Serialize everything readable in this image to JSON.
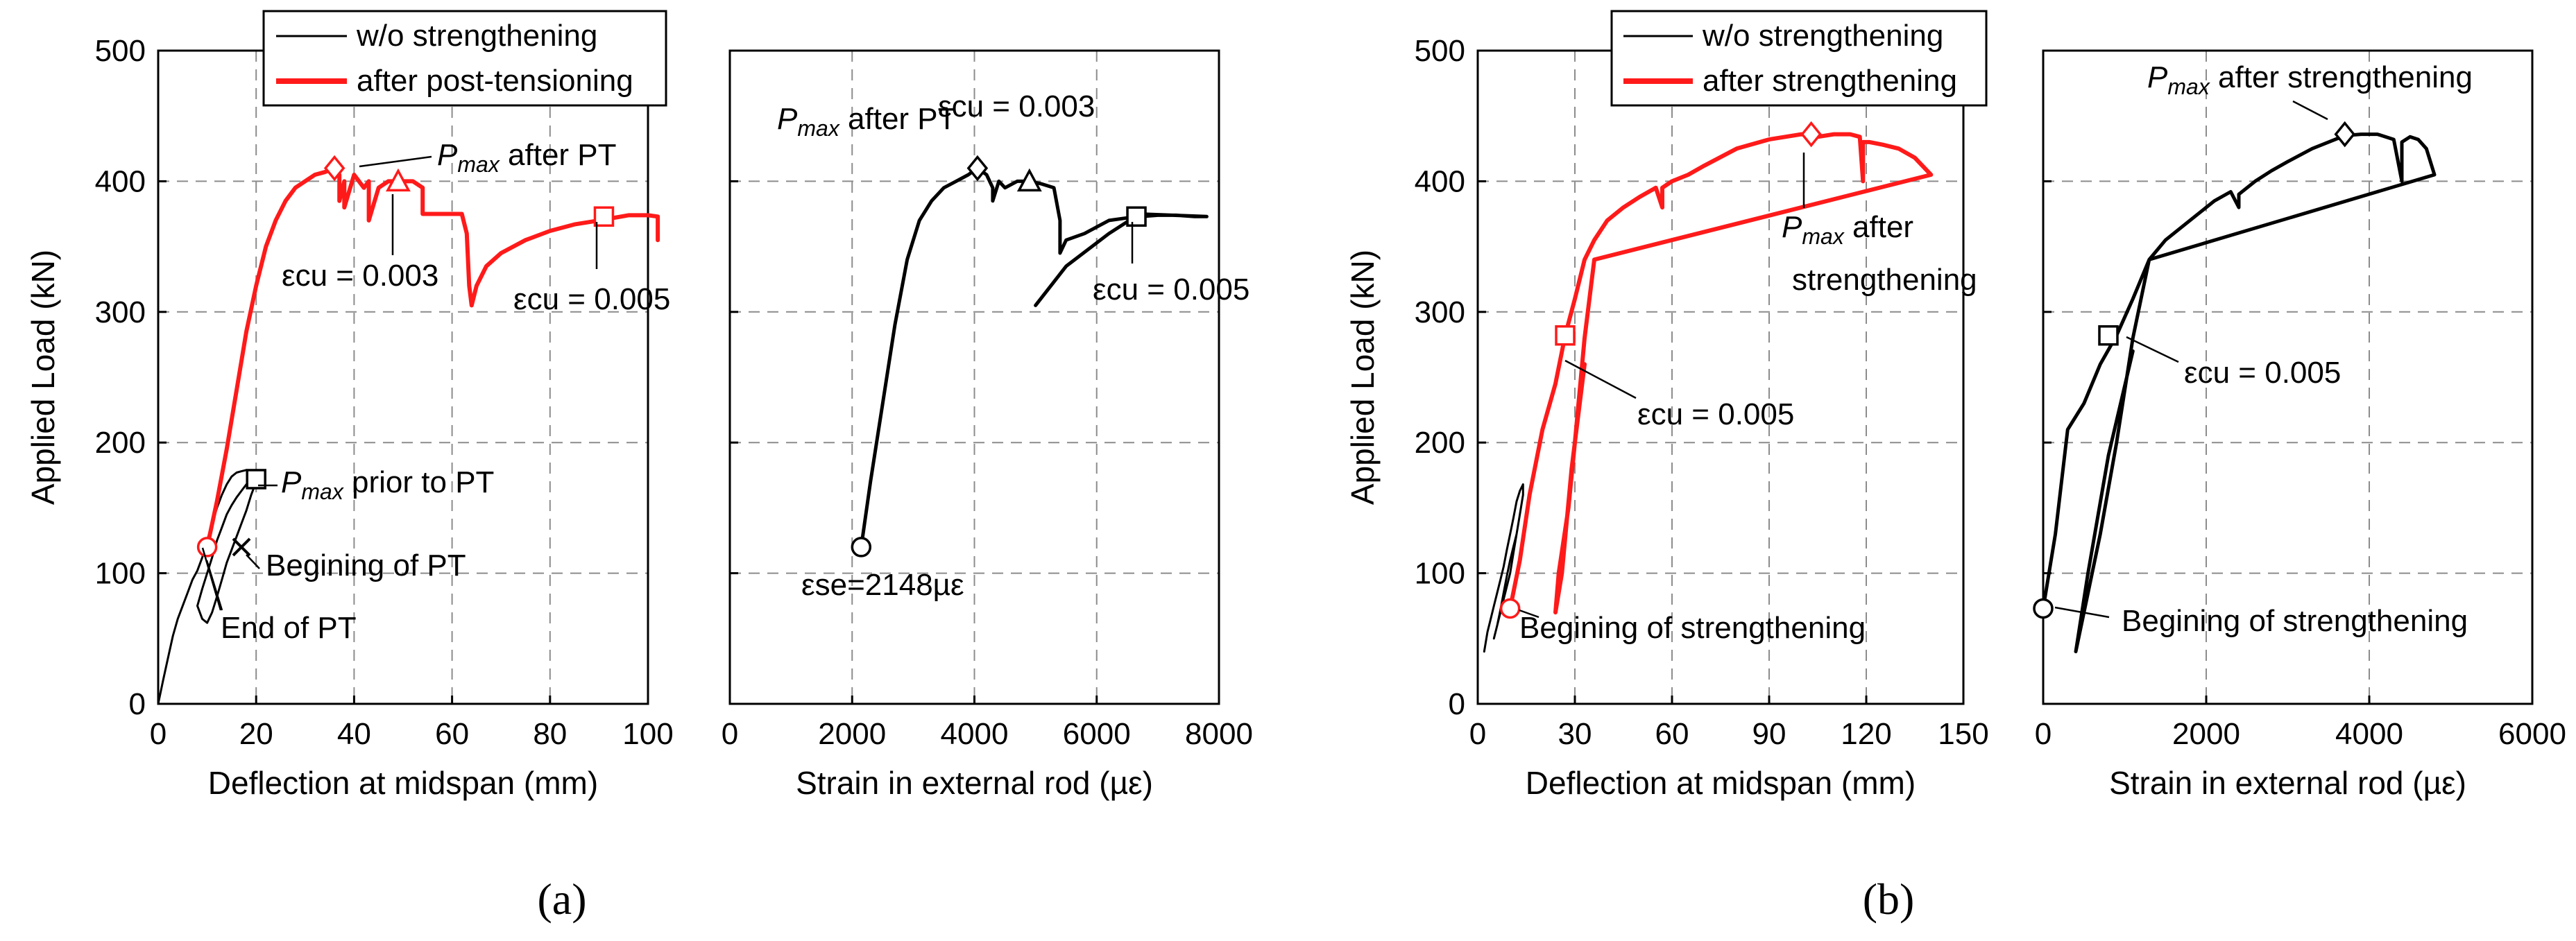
{
  "panel_labels": {
    "a": "(a)",
    "b": "(b)"
  },
  "legend_a": {
    "black": "w/o strengthening",
    "red": "after post-tensioning"
  },
  "legend_b": {
    "black": "w/o strengthening",
    "red": "after strengthening"
  },
  "axis_titles": {
    "load": "Applied Load (kN)",
    "deflection": "Deflection at midspan (mm)",
    "strain": "Strain in external rod (µε)"
  },
  "annotations": {
    "a1_pmax_pt": "P_max after PT",
    "a1_ecu_003": "εcu = 0.003",
    "a1_ecu_005": "εcu = 0.005",
    "a1_pmax_prior": "P_max prior to PT",
    "a1_beg_pt": "Begining of PT",
    "a1_end_pt": "End of PT",
    "a2_pmax_pt": "P_max after PT",
    "a2_ecu_003": "εcu = 0.003",
    "a2_ecu_005": "εcu = 0.005",
    "a2_ese": "εse=2148µε",
    "b1_pmax_line1": "P_max after",
    "b1_pmax_line2": "strengthening",
    "b1_ecu_005": "εcu = 0.005",
    "b1_beg": "Begining of strengthening",
    "b2_pmax": "P_max after strengthening",
    "b2_ecu_005": "εcu = 0.005",
    "b2_beg": "Begining of strengthening"
  },
  "colors": {
    "black": "#000000",
    "red": "#ff1a1a",
    "grid": "#8c8c8c"
  },
  "chart_data": [
    {
      "id": "a1",
      "type": "line",
      "xlabel": "Deflection at midspan (mm)",
      "ylabel": "Applied Load (kN)",
      "xlim": [
        0,
        100
      ],
      "ylim": [
        0,
        500
      ],
      "xticks": [
        0,
        20,
        40,
        60,
        80,
        100
      ],
      "yticks": [
        0,
        100,
        200,
        300,
        400,
        500
      ],
      "grid": true,
      "legend": "top-center",
      "series": [
        {
          "name": "w/o strengthening",
          "color": "#000000",
          "width": 3,
          "x": [
            0,
            1,
            2,
            3,
            4,
            5,
            6,
            7,
            8,
            9,
            10,
            11,
            12,
            13,
            14,
            15,
            16,
            17,
            18,
            19,
            20,
            20,
            19,
            18,
            17,
            16,
            15,
            14,
            13,
            12,
            11,
            10,
            9,
            8,
            9,
            10,
            11,
            12,
            13,
            14,
            15,
            16,
            17,
            18,
            20
          ],
          "y": [
            0,
            18,
            35,
            52,
            65,
            75,
            85,
            95,
            102,
            112,
            125,
            138,
            150,
            160,
            168,
            174,
            177,
            178,
            179,
            178,
            176,
            170,
            160,
            148,
            138,
            128,
            118,
            108,
            95,
            82,
            70,
            62,
            65,
            75,
            88,
            100,
            112,
            125,
            135,
            145,
            152,
            158,
            163,
            168,
            172
          ]
        },
        {
          "name": "after post-tensioning",
          "color": "#ff1a1a",
          "width": 6,
          "x": [
            10,
            12,
            14,
            16,
            18,
            20,
            22,
            24,
            26,
            28,
            30,
            32,
            34,
            36,
            37,
            37,
            38,
            38,
            40,
            42,
            43,
            43,
            45,
            47,
            50,
            52,
            54,
            54,
            55,
            56,
            60,
            62,
            63,
            63.5,
            64,
            65,
            67,
            70,
            75,
            80,
            85,
            90,
            93,
            96,
            100,
            102,
            102
          ],
          "y": [
            120,
            155,
            195,
            240,
            285,
            320,
            350,
            370,
            385,
            395,
            400,
            405,
            407,
            410,
            405,
            385,
            400,
            380,
            405,
            395,
            400,
            370,
            395,
            400,
            400,
            400,
            395,
            375,
            375,
            375,
            375,
            375,
            360,
            320,
            305,
            320,
            335,
            345,
            355,
            362,
            367,
            370,
            372,
            374,
            374,
            373,
            355
          ]
        }
      ],
      "markers": [
        {
          "shape": "diamond",
          "x": 36,
          "y": 410,
          "color": "#ff1a1a"
        },
        {
          "shape": "triangle",
          "x": 49,
          "y": 400,
          "color": "#ff1a1a"
        },
        {
          "shape": "square",
          "x": 91,
          "y": 373,
          "color": "#ff1a1a"
        },
        {
          "shape": "circle",
          "x": 10,
          "y": 120,
          "color": "#ff1a1a"
        },
        {
          "shape": "square",
          "x": 20,
          "y": 172,
          "color": "#000000"
        },
        {
          "shape": "x",
          "x": 17,
          "y": 120,
          "color": "#000000"
        }
      ]
    },
    {
      "id": "a2",
      "type": "line",
      "xlabel": "Strain in external rod (µε)",
      "ylabel": "",
      "xlim": [
        0,
        8000
      ],
      "ylim": [
        0,
        500
      ],
      "xticks": [
        0,
        2000,
        4000,
        6000,
        8000
      ],
      "yticks": [
        0,
        100,
        200,
        300,
        400,
        500
      ],
      "grid": true,
      "series": [
        {
          "name": "",
          "color": "#000000",
          "width": 5,
          "x": [
            2148,
            2300,
            2500,
            2700,
            2900,
            3100,
            3300,
            3500,
            3700,
            3900,
            4050,
            4200,
            4300,
            4300,
            4400,
            4500,
            4700,
            4900,
            5100,
            5300,
            5400,
            5400,
            5500,
            5800,
            6000,
            6200,
            6500,
            6700,
            7000,
            7300,
            7600,
            7800,
            6700,
            6200,
            5500,
            5000
          ],
          "y": [
            120,
            170,
            230,
            290,
            340,
            370,
            385,
            395,
            400,
            405,
            410,
            405,
            395,
            385,
            400,
            395,
            400,
            400,
            398,
            395,
            370,
            345,
            355,
            360,
            365,
            370,
            372,
            373,
            374,
            374,
            373,
            373,
            375,
            360,
            335,
            305
          ]
        }
      ],
      "markers": [
        {
          "shape": "circle",
          "x": 2148,
          "y": 120,
          "color": "#000000"
        },
        {
          "shape": "diamond",
          "x": 4050,
          "y": 410,
          "color": "#000000"
        },
        {
          "shape": "triangle",
          "x": 4900,
          "y": 400,
          "color": "#000000"
        },
        {
          "shape": "square",
          "x": 6650,
          "y": 373,
          "color": "#000000"
        }
      ]
    },
    {
      "id": "b1",
      "type": "line",
      "xlabel": "Deflection at midspan (mm)",
      "ylabel": "Applied Load (kN)",
      "xlim": [
        0,
        150
      ],
      "ylim": [
        0,
        500
      ],
      "xticks": [
        0,
        30,
        60,
        90,
        120,
        150
      ],
      "yticks": [
        0,
        100,
        200,
        300,
        400,
        500
      ],
      "grid": true,
      "legend": "top-center",
      "series": [
        {
          "name": "w/o strengthening",
          "color": "#000000",
          "width": 3,
          "x": [
            2,
            3,
            4,
            5,
            6,
            7,
            8,
            9,
            10,
            11,
            12,
            13,
            14,
            14,
            13,
            12,
            11,
            10,
            9,
            8,
            7,
            6,
            5,
            6,
            7,
            8,
            9,
            10,
            11,
            12
          ],
          "y": [
            40,
            55,
            65,
            75,
            85,
            95,
            105,
            118,
            130,
            142,
            155,
            163,
            168,
            160,
            145,
            130,
            115,
            100,
            90,
            80,
            70,
            60,
            50,
            60,
            72,
            85,
            98,
            110,
            120,
            130
          ]
        },
        {
          "name": "after strengthening",
          "color": "#ff1a1a",
          "width": 6,
          "x": [
            10,
            13,
            16,
            20,
            24,
            27,
            30,
            33,
            36,
            40,
            45,
            50,
            55,
            57,
            57,
            60,
            65,
            70,
            80,
            90,
            100,
            105,
            110,
            115,
            118,
            119,
            119,
            121,
            125,
            130,
            135,
            140,
            36,
            33,
            30,
            28,
            25,
            24,
            26,
            29,
            33
          ],
          "y": [
            73,
            110,
            160,
            210,
            245,
            282,
            310,
            340,
            355,
            370,
            380,
            388,
            395,
            380,
            395,
            400,
            405,
            412,
            425,
            432,
            436,
            434,
            436,
            436,
            434,
            400,
            430,
            430,
            428,
            425,
            418,
            405,
            340,
            280,
            200,
            150,
            100,
            70,
            100,
            180,
            260
          ]
        }
      ],
      "markers": [
        {
          "shape": "diamond",
          "x": 103,
          "y": 436,
          "color": "#ff1a1a"
        },
        {
          "shape": "square",
          "x": 27,
          "y": 282,
          "color": "#ff1a1a"
        },
        {
          "shape": "circle",
          "x": 10,
          "y": 73,
          "color": "#ff1a1a"
        }
      ]
    },
    {
      "id": "b2",
      "type": "line",
      "xlabel": "Strain in external rod (µε)",
      "ylabel": "",
      "xlim": [
        0,
        6000
      ],
      "ylim": [
        0,
        500
      ],
      "xticks": [
        0,
        2000,
        4000,
        6000
      ],
      "yticks": [
        0,
        100,
        200,
        300,
        400,
        500
      ],
      "grid": true,
      "series": [
        {
          "name": "",
          "color": "#000000",
          "width": 5,
          "x": [
            0,
            150,
            300,
            500,
            700,
            900,
            1100,
            1300,
            1500,
            1800,
            2100,
            2300,
            2400,
            2400,
            2600,
            2800,
            3000,
            3300,
            3500,
            3700,
            3900,
            4100,
            4300,
            4400,
            4400,
            4500,
            4600,
            4700,
            4800,
            1300,
            1100,
            900,
            700,
            500,
            400,
            550,
            800,
            1100
          ],
          "y": [
            73,
            130,
            210,
            230,
            260,
            282,
            310,
            340,
            355,
            370,
            385,
            392,
            380,
            390,
            400,
            408,
            415,
            425,
            430,
            435,
            436,
            436,
            432,
            400,
            430,
            434,
            432,
            425,
            405,
            340,
            280,
            200,
            130,
            70,
            40,
            100,
            190,
            270
          ]
        }
      ],
      "markers": [
        {
          "shape": "circle",
          "x": 0,
          "y": 73,
          "color": "#000000"
        },
        {
          "shape": "square",
          "x": 800,
          "y": 282,
          "color": "#000000"
        },
        {
          "shape": "diamond",
          "x": 3700,
          "y": 436,
          "color": "#000000"
        }
      ]
    }
  ]
}
